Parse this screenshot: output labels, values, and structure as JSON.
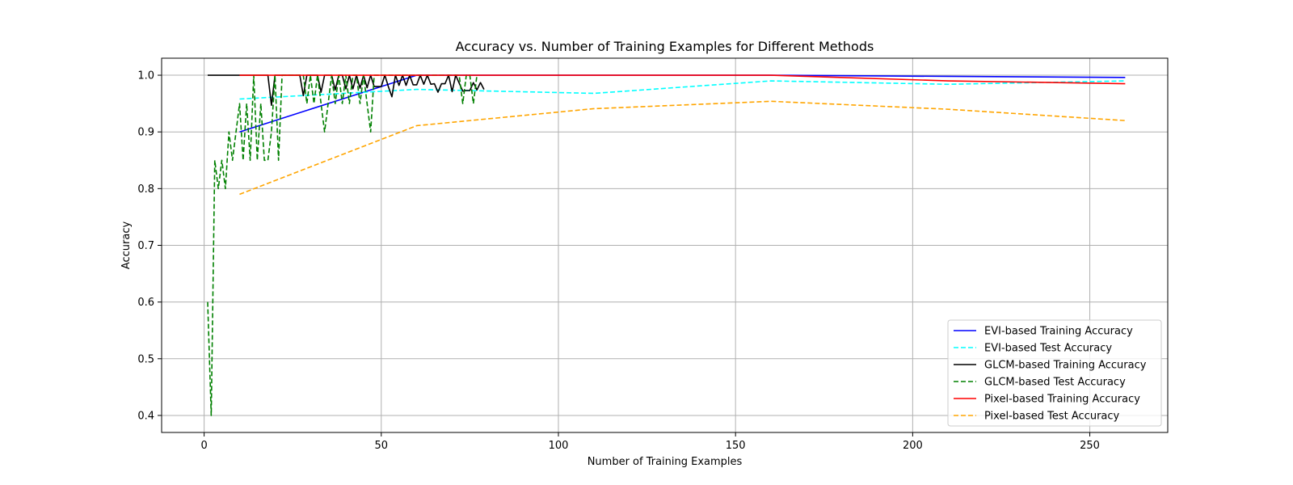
{
  "chart_data": {
    "type": "line",
    "title": "Accuracy vs. Number of Training Examples for Different Methods",
    "xlabel": "Number of Training Examples",
    "ylabel": "Accuracy",
    "xlim": [
      -12,
      272
    ],
    "ylim": [
      0.37,
      1.03
    ],
    "xticks": [
      0,
      50,
      100,
      150,
      200,
      250
    ],
    "yticks": [
      0.4,
      0.5,
      0.6,
      0.7,
      0.8,
      0.9,
      1.0
    ],
    "grid": true,
    "legend_position": "lower-right",
    "series": [
      {
        "name": "EVI-based Training Accuracy",
        "color": "#0000ff",
        "dash": "solid",
        "x": [
          10,
          60,
          110,
          160,
          210,
          260
        ],
        "y": [
          0.9,
          1.0,
          1.0,
          1.0,
          0.998,
          0.996
        ]
      },
      {
        "name": "EVI-based Test Accuracy",
        "color": "#00ffff",
        "dash": "dashed",
        "x": [
          10,
          60,
          110,
          160,
          210,
          260
        ],
        "y": [
          0.958,
          0.975,
          0.968,
          0.99,
          0.984,
          0.99
        ]
      },
      {
        "name": "GLCM-based Training Accuracy",
        "color": "#000000",
        "dash": "solid",
        "x": [
          1,
          2,
          3,
          4,
          5,
          6,
          7,
          8,
          9,
          10,
          11,
          12,
          13,
          14,
          15,
          16,
          17,
          18,
          19,
          20,
          21,
          22,
          23,
          24,
          25,
          26,
          27,
          28,
          29,
          30,
          31,
          32,
          33,
          34,
          35,
          36,
          37,
          38,
          39,
          40,
          41,
          42,
          43,
          44,
          45,
          46,
          47,
          48,
          49,
          50,
          51,
          52,
          53,
          54,
          55,
          56,
          57,
          58,
          59,
          60,
          61,
          62,
          63,
          64,
          65,
          66,
          67,
          68,
          69,
          70,
          71,
          72,
          73,
          74,
          75,
          76,
          77,
          78,
          79
        ],
        "y": [
          1.0,
          1.0,
          1.0,
          1.0,
          1.0,
          1.0,
          1.0,
          1.0,
          1.0,
          1.0,
          1.0,
          1.0,
          1.0,
          1.0,
          1.0,
          1.0,
          1.0,
          1.0,
          0.947,
          1.0,
          1.0,
          1.0,
          1.0,
          1.0,
          1.0,
          1.0,
          1.0,
          0.964,
          1.0,
          1.0,
          1.0,
          1.0,
          0.97,
          1.0,
          1.0,
          1.0,
          0.974,
          1.0,
          1.0,
          0.976,
          1.0,
          0.976,
          1.0,
          0.977,
          1.0,
          0.978,
          1.0,
          0.98,
          0.98,
          0.98,
          1.0,
          0.98,
          0.962,
          1.0,
          0.982,
          1.0,
          0.982,
          1.0,
          0.983,
          0.983,
          1.0,
          0.984,
          1.0,
          0.984,
          0.985,
          0.97,
          0.985,
          0.985,
          1.0,
          0.971,
          1.0,
          0.986,
          0.972,
          0.973,
          0.973,
          0.987,
          0.974,
          0.987,
          0.975
        ]
      },
      {
        "name": "GLCM-based Test Accuracy",
        "color": "#008000",
        "dash": "dashed",
        "x": [
          1,
          2,
          3,
          4,
          5,
          6,
          7,
          8,
          9,
          10,
          11,
          12,
          13,
          14,
          15,
          16,
          17,
          18,
          19,
          20,
          21,
          22,
          23,
          24,
          25,
          26,
          27,
          28,
          29,
          30,
          31,
          32,
          33,
          34,
          35,
          36,
          37,
          38,
          39,
          40,
          41,
          42,
          43,
          44,
          45,
          46,
          47,
          48,
          49,
          50,
          51,
          52,
          53,
          54,
          55,
          56,
          57,
          58,
          59,
          60,
          61,
          62,
          63,
          64,
          65,
          66,
          67,
          68,
          69,
          70,
          71,
          72,
          73,
          74,
          75,
          76,
          77
        ],
        "y": [
          0.6,
          0.4,
          0.85,
          0.8,
          0.85,
          0.8,
          0.9,
          0.85,
          0.9,
          0.95,
          0.85,
          0.95,
          0.85,
          1.0,
          0.85,
          0.95,
          0.85,
          0.85,
          0.9,
          1.0,
          0.85,
          1.0,
          1.0,
          1.0,
          1.0,
          1.0,
          1.0,
          1.0,
          0.95,
          1.0,
          0.95,
          1.0,
          0.95,
          0.9,
          0.95,
          1.0,
          0.95,
          1.0,
          0.95,
          1.0,
          0.95,
          1.0,
          1.0,
          0.95,
          1.0,
          0.95,
          0.9,
          1.0,
          1.0,
          1.0,
          1.0,
          1.0,
          1.0,
          1.0,
          1.0,
          1.0,
          1.0,
          1.0,
          1.0,
          1.0,
          1.0,
          1.0,
          1.0,
          1.0,
          1.0,
          1.0,
          1.0,
          1.0,
          1.0,
          1.0,
          1.0,
          1.0,
          0.95,
          1.0,
          1.0,
          0.95,
          1.0
        ]
      },
      {
        "name": "Pixel-based Training Accuracy",
        "color": "#ff0000",
        "dash": "solid",
        "x": [
          10,
          60,
          110,
          160,
          210,
          260
        ],
        "y": [
          1.0,
          1.0,
          1.0,
          1.0,
          0.99,
          0.985
        ]
      },
      {
        "name": "Pixel-based Test Accuracy",
        "color": "#ffa500",
        "dash": "dashed",
        "x": [
          10,
          60,
          110,
          160,
          210,
          260
        ],
        "y": [
          0.79,
          0.911,
          0.941,
          0.954,
          0.94,
          0.92
        ]
      }
    ]
  }
}
